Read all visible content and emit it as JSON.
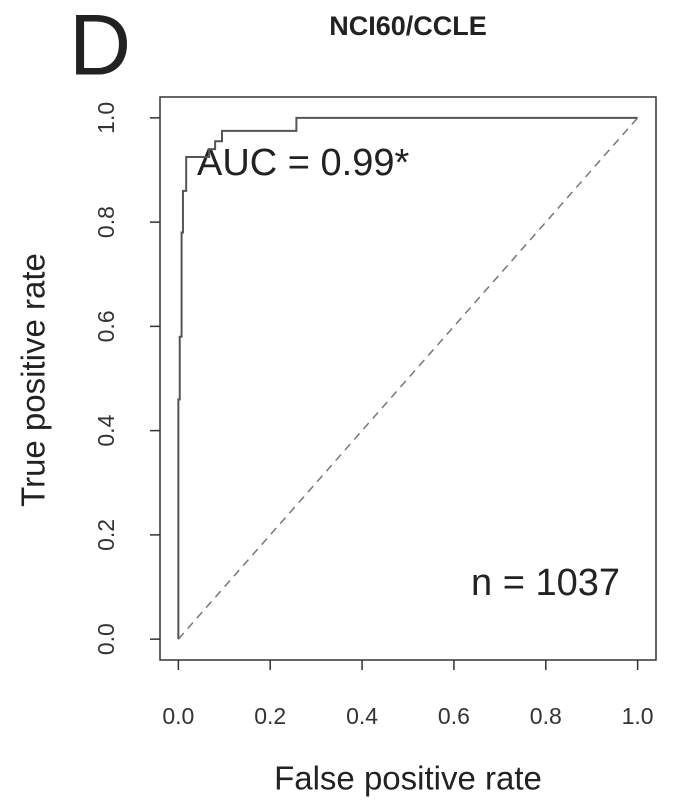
{
  "chart_data": {
    "type": "line",
    "panel_label": "D",
    "title": "NCI60/CCLE",
    "x_label": "False positive rate",
    "y_label": "True positive rate",
    "annotations": [
      "AUC = 0.99*",
      "n = 1037"
    ],
    "x": [
      0,
      0,
      0.003,
      0.003,
      0.007,
      0.007,
      0.01,
      0.01,
      0.017,
      0.017,
      0.067,
      0.067,
      0.08,
      0.08,
      0.095,
      0.095,
      0.257,
      0.257,
      1
    ],
    "values": [
      0,
      0.46,
      0.46,
      0.58,
      0.58,
      0.78,
      0.78,
      0.86,
      0.86,
      0.925,
      0.925,
      0.94,
      0.94,
      0.955,
      0.955,
      0.975,
      0.975,
      1,
      1
    ],
    "color": "#555555",
    "diagonal": true,
    "xlim": [
      -0.04,
      1.04
    ],
    "ylim": [
      -0.04,
      1.04
    ],
    "xticks": [
      {
        "value": 0,
        "label": "0.0"
      },
      0.2,
      0.4,
      0.6,
      0.8,
      {
        "value": 1,
        "label": "1.0"
      }
    ],
    "yticks": [
      {
        "value": 0,
        "label": "0.0"
      },
      0.2,
      0.4,
      0.6,
      0.8,
      {
        "value": 1,
        "label": "1.0"
      }
    ]
  }
}
